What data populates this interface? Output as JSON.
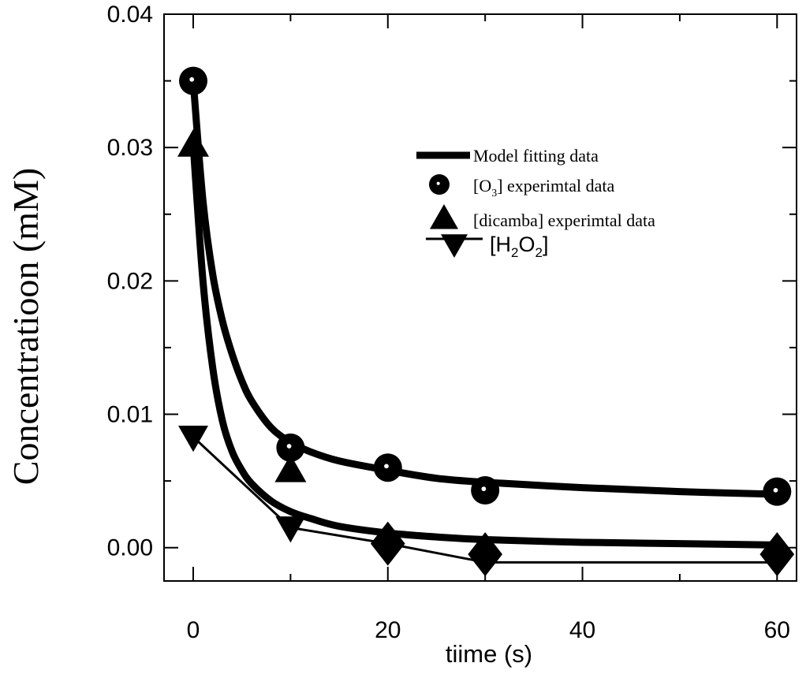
{
  "chart_data": {
    "type": "scatter",
    "xlabel": "tiime (s)",
    "ylabel": "Concentratioon (mM)",
    "xlim": [
      -3,
      62
    ],
    "ylim": [
      -0.0025,
      0.04
    ],
    "xticks": [
      0,
      20,
      40,
      60
    ],
    "xtick_labels": [
      "0",
      "20",
      "40",
      "60"
    ],
    "yticks": [
      0.0,
      0.01,
      0.02,
      0.03,
      0.04
    ],
    "ytick_labels": [
      "0.00",
      "0.01",
      "0.02",
      "0.03",
      "0.04"
    ],
    "grid": false,
    "legend_position": "top-right",
    "series": [
      {
        "name": "[O3] experimtal data",
        "marker": "circle",
        "x": [
          0,
          10,
          20,
          30,
          60
        ],
        "y": [
          0.035,
          0.0075,
          0.006,
          0.0043,
          0.0042
        ]
      },
      {
        "name": "[dicamba] experimtal data",
        "marker": "triangle-up",
        "x": [
          0,
          10,
          20,
          30,
          60
        ],
        "y": [
          0.0302,
          0.0058,
          0.0008,
          -0.0003,
          -0.0002
        ]
      },
      {
        "name": "[H2O2]",
        "marker": "triangle-down",
        "x": [
          0,
          10,
          20,
          30,
          60
        ],
        "y": [
          0.0083,
          0.0015,
          0.0003,
          -0.0008,
          -0.0008
        ]
      }
    ],
    "diamond_markers": {
      "x": [
        20,
        30,
        60
      ],
      "y": [
        0.0003,
        -0.0005,
        -0.0005
      ]
    },
    "fit_curves": [
      {
        "name": "Model fitting data",
        "x": [
          0,
          1,
          2,
          3,
          4,
          5,
          6,
          8,
          10,
          12,
          15,
          20,
          25,
          30,
          40,
          50,
          60
        ],
        "y": [
          0.035,
          0.026,
          0.0205,
          0.017,
          0.0145,
          0.0125,
          0.011,
          0.009,
          0.0079,
          0.0072,
          0.0065,
          0.0058,
          0.0052,
          0.0049,
          0.0045,
          0.0042,
          0.004
        ]
      },
      {
        "name": "Model fitting data",
        "x": [
          0,
          1,
          2,
          3,
          4,
          5,
          6,
          8,
          10,
          12,
          15,
          20,
          25,
          30,
          40,
          50,
          60
        ],
        "y": [
          0.0302,
          0.02,
          0.0135,
          0.0095,
          0.0072,
          0.0058,
          0.0048,
          0.0035,
          0.0027,
          0.0022,
          0.0016,
          0.0011,
          0.0008,
          0.0006,
          0.0004,
          0.0003,
          0.0002
        ]
      }
    ],
    "h2o2_line": {
      "x": [
        0,
        10,
        20,
        30,
        60
      ],
      "y": [
        0.0083,
        0.0015,
        0.0003,
        -0.0011,
        -0.0011
      ]
    },
    "legend": [
      {
        "label": "Model fitting data",
        "symbol": "thick-line"
      },
      {
        "label": "[O",
        "sub": "3",
        "label_end": "] experimtal data",
        "symbol": "circle"
      },
      {
        "label": "[dicamba] experimtal data",
        "symbol": "triangle-up"
      },
      {
        "label": "[H",
        "sub": "2",
        "label_mid": "O",
        "sub2": "2",
        "label_end": "]",
        "symbol": "line-triangle-down"
      }
    ]
  }
}
